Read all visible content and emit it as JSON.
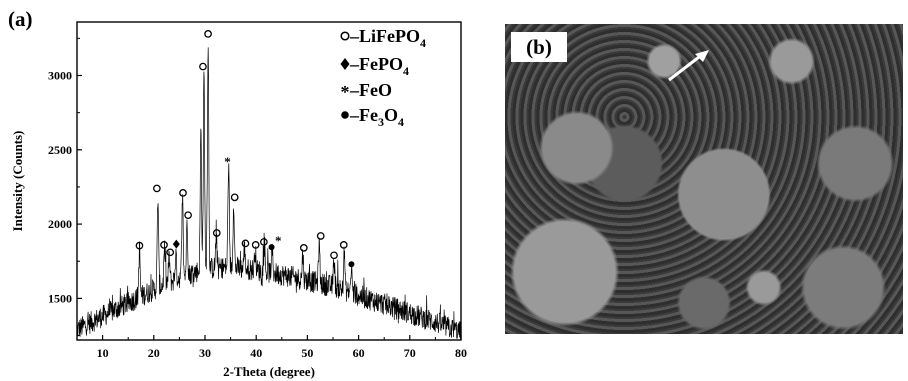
{
  "panels": {
    "a_label": "(a)",
    "b_label": "(b)"
  },
  "chart_data": {
    "type": "line",
    "title": "",
    "xlabel": "2-Theta (degree)",
    "ylabel": "Intensity (Counts)",
    "xlim": [
      5,
      80
    ],
    "ylim": [
      1220,
      3360
    ],
    "x_ticks": [
      10,
      20,
      30,
      40,
      50,
      60,
      70,
      80
    ],
    "y_ticks": [
      1500,
      2000,
      2500,
      3000
    ],
    "legend": [
      {
        "symbol": "o",
        "text": "–LiFePO",
        "sub": "4"
      },
      {
        "symbol": "♦",
        "text": "–FePO",
        "sub": "4"
      },
      {
        "symbol": "*",
        "text": "–FeO",
        "sub": ""
      },
      {
        "symbol": "●",
        "text": "–Fe",
        "sub": "3",
        "tail": "O",
        "sub2": "4"
      }
    ],
    "legend_placement": "top-right",
    "background": {
      "x": [
        5,
        10,
        15,
        20,
        25,
        30,
        35,
        40,
        45,
        50,
        55,
        60,
        65,
        70,
        75,
        80
      ],
      "y": [
        1290,
        1380,
        1470,
        1560,
        1640,
        1700,
        1710,
        1690,
        1660,
        1620,
        1580,
        1520,
        1460,
        1400,
        1340,
        1270
      ]
    },
    "peaks": [
      {
        "x": 17.2,
        "y": 1830
      },
      {
        "x": 20.8,
        "y": 2180
      },
      {
        "x": 22.1,
        "y": 1830
      },
      {
        "x": 23.0,
        "y": 1780
      },
      {
        "x": 24.3,
        "y": 1800
      },
      {
        "x": 25.6,
        "y": 2180
      },
      {
        "x": 26.5,
        "y": 2030
      },
      {
        "x": 29.2,
        "y": 2640
      },
      {
        "x": 29.8,
        "y": 3020
      },
      {
        "x": 30.6,
        "y": 3220
      },
      {
        "x": 32.2,
        "y": 1920
      },
      {
        "x": 34.6,
        "y": 2380
      },
      {
        "x": 35.6,
        "y": 2160
      },
      {
        "x": 37.7,
        "y": 1840
      },
      {
        "x": 39.8,
        "y": 1830
      },
      {
        "x": 41.6,
        "y": 1850
      },
      {
        "x": 43.1,
        "y": 1830
      },
      {
        "x": 49.1,
        "y": 1800
      },
      {
        "x": 52.3,
        "y": 1870
      },
      {
        "x": 55.2,
        "y": 1770
      },
      {
        "x": 57.2,
        "y": 1810
      },
      {
        "x": 58.6,
        "y": 1700
      }
    ],
    "markers": [
      {
        "symbol": "o",
        "x": 17.2,
        "y": 1855
      },
      {
        "symbol": "o",
        "x": 20.6,
        "y": 2240
      },
      {
        "symbol": "o",
        "x": 22.0,
        "y": 1860
      },
      {
        "symbol": "o",
        "x": 23.2,
        "y": 1810
      },
      {
        "symbol": "♦",
        "x": 24.4,
        "y": 1865
      },
      {
        "symbol": "o",
        "x": 25.7,
        "y": 2210
      },
      {
        "symbol": "o",
        "x": 26.7,
        "y": 2060
      },
      {
        "symbol": "o",
        "x": 29.6,
        "y": 3060
      },
      {
        "symbol": "o",
        "x": 30.6,
        "y": 3280
      },
      {
        "symbol": "o",
        "x": 32.3,
        "y": 1940
      },
      {
        "symbol": "*",
        "x": 34.4,
        "y": 2430
      },
      {
        "symbol": "o",
        "x": 35.8,
        "y": 2180
      },
      {
        "symbol": "o",
        "x": 37.9,
        "y": 1870
      },
      {
        "symbol": "o",
        "x": 39.9,
        "y": 1860
      },
      {
        "symbol": "o",
        "x": 41.5,
        "y": 1880
      },
      {
        "symbol": "●",
        "x": 43.0,
        "y": 1845
      },
      {
        "symbol": "*",
        "x": 44.3,
        "y": 1900
      },
      {
        "symbol": "o",
        "x": 49.3,
        "y": 1840
      },
      {
        "symbol": "o",
        "x": 52.6,
        "y": 1920
      },
      {
        "symbol": "o",
        "x": 55.2,
        "y": 1790
      },
      {
        "symbol": "o",
        "x": 57.1,
        "y": 1860
      },
      {
        "symbol": "●",
        "x": 58.6,
        "y": 1730
      }
    ]
  }
}
